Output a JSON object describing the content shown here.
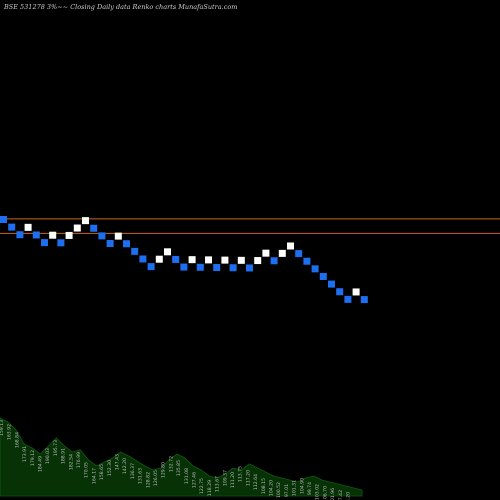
{
  "header": {
    "title": "BSE 531278  3%~~  Closing Daily data  Renko  charts MunafaSutra.com"
  },
  "colors": {
    "background": "#000000",
    "up_brick": "#ffffff",
    "down_brick": "#1e6ff0",
    "reference_line": "#c8641e",
    "volume_fill": "#063206",
    "volume_line": "#0f5a0f",
    "volume_label": "#bbbbbb"
  },
  "chart_data": {
    "type": "renko",
    "brick_size": "3%",
    "reference_lines": [
      250.49,
      236.36
    ],
    "bricks": [
      {
        "dir": "down",
        "price": 249.87
      },
      {
        "dir": "down",
        "price": 242.38
      },
      {
        "dir": "down",
        "price": 235.11
      },
      {
        "dir": "up",
        "price": 242.16
      },
      {
        "dir": "down",
        "price": 234.89
      },
      {
        "dir": "down",
        "price": 227.84
      },
      {
        "dir": "up",
        "price": 234.68
      },
      {
        "dir": "down",
        "price": 227.64
      },
      {
        "dir": "up",
        "price": 234.46
      },
      {
        "dir": "up",
        "price": 241.49
      },
      {
        "dir": "up",
        "price": 248.74
      },
      {
        "dir": "down",
        "price": 241.28
      },
      {
        "dir": "down",
        "price": 234.04
      },
      {
        "dir": "down",
        "price": 227.02
      },
      {
        "dir": "up",
        "price": 233.83
      },
      {
        "dir": "down",
        "price": 226.81
      },
      {
        "dir": "down",
        "price": 220.01
      },
      {
        "dir": "down",
        "price": 213.41
      },
      {
        "dir": "down",
        "price": 207.01
      },
      {
        "dir": "up",
        "price": 213.22
      },
      {
        "dir": "up",
        "price": 219.61
      },
      {
        "dir": "down",
        "price": 213.03
      },
      {
        "dir": "down",
        "price": 206.64
      },
      {
        "dir": "up",
        "price": 212.84
      },
      {
        "dir": "down",
        "price": 206.45
      },
      {
        "dir": "up",
        "price": 212.64
      },
      {
        "dir": "down",
        "price": 206.26
      },
      {
        "dir": "up",
        "price": 212.45
      },
      {
        "dir": "down",
        "price": 206.08
      },
      {
        "dir": "up",
        "price": 212.26
      },
      {
        "dir": "down",
        "price": 205.89
      },
      {
        "dir": "up",
        "price": 212.07
      },
      {
        "dir": "up",
        "price": 218.43
      },
      {
        "dir": "down",
        "price": 211.88
      },
      {
        "dir": "up",
        "price": 218.24
      },
      {
        "dir": "up",
        "price": 224.79
      },
      {
        "dir": "down",
        "price": 218.05
      },
      {
        "dir": "down",
        "price": 211.51
      },
      {
        "dir": "down",
        "price": 205.16
      },
      {
        "dir": "down",
        "price": 199.01
      },
      {
        "dir": "down",
        "price": 193.04
      },
      {
        "dir": "down",
        "price": 187.25
      },
      {
        "dir": "down",
        "price": 181.63
      },
      {
        "dir": "up",
        "price": 187.08
      },
      {
        "dir": "down",
        "price": 181.47
      }
    ],
    "volume_labels": [
      "159.13",
      "163.92",
      "168.84",
      "173.91",
      "179.12",
      "184.49",
      "190.03",
      "195.73",
      "188.91",
      "182.54",
      "176.99",
      "170.05",
      "164.17",
      "158.65",
      "152.30",
      "147.43",
      "142.20",
      "136.37",
      "131.63",
      "128.82",
      "126.05",
      "129.80",
      "132.72",
      "135.85",
      "131.08",
      "127.46",
      "122.75",
      "118.29",
      "113.67",
      "109.37",
      "111.20",
      "113.75",
      "117.20",
      "112.64",
      "108.15",
      "104.20",
      "100.52",
      "97.01",
      "101.31",
      "104.90",
      "99.74",
      "103.02",
      "106.70",
      "101.96",
      "97.42",
      "93.20"
    ],
    "volume": [
      0.78,
      0.74,
      0.66,
      0.52,
      0.48,
      0.42,
      0.5,
      0.58,
      0.5,
      0.44,
      0.46,
      0.36,
      0.3,
      0.34,
      0.38,
      0.44,
      0.4,
      0.35,
      0.3,
      0.26,
      0.28,
      0.36,
      0.42,
      0.38,
      0.3,
      0.26,
      0.2,
      0.18,
      0.22,
      0.28,
      0.26,
      0.32,
      0.28,
      0.24,
      0.2,
      0.18,
      0.16,
      0.14,
      0.18,
      0.2,
      0.16,
      0.14,
      0.12,
      0.1,
      0.08,
      0.06
    ]
  }
}
